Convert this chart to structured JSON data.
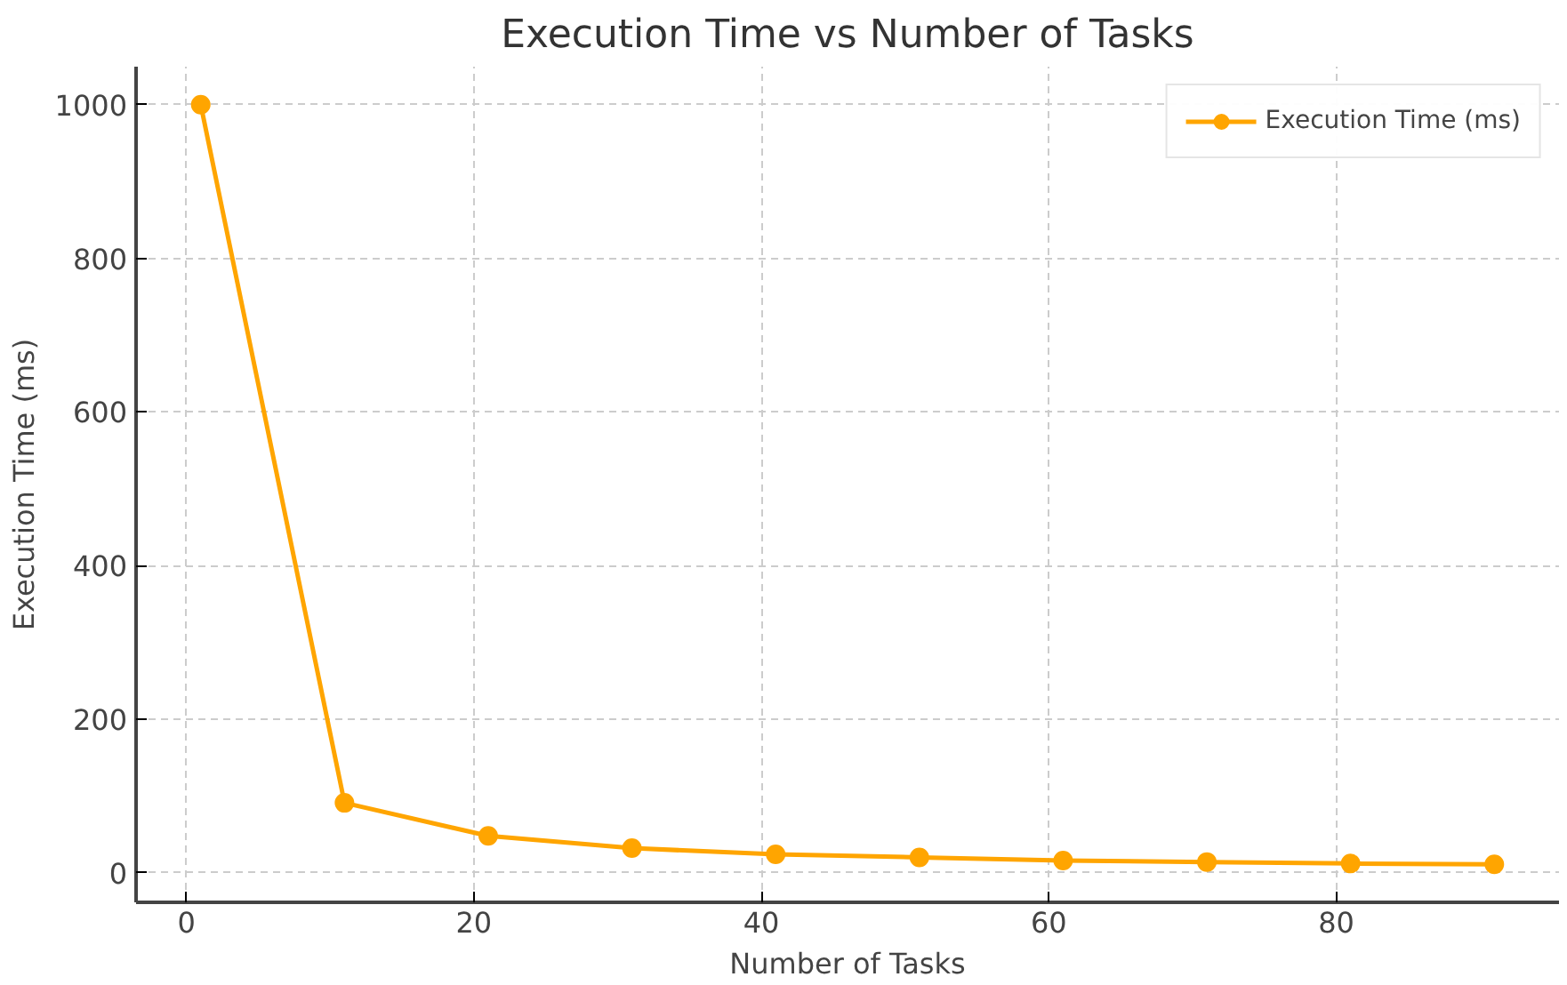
{
  "chart_data": {
    "type": "line",
    "title": "Execution Time vs Number of Tasks",
    "xlabel": "Number of Tasks",
    "ylabel": "Execution Time (ms)",
    "x": [
      1,
      11,
      21,
      31,
      41,
      51,
      61,
      71,
      81,
      91
    ],
    "series": [
      {
        "name": "Execution Time (ms)",
        "color": "#ffa500",
        "values": [
          1000,
          91,
          48,
          32,
          24,
          20,
          16,
          14,
          12,
          11
        ]
      }
    ],
    "xlim": [
      -3.5,
      95.5
    ],
    "ylim": [
      -38.5,
      1049.5
    ],
    "xticks": [
      0,
      20,
      40,
      60,
      80
    ],
    "yticks": [
      0,
      200,
      400,
      600,
      800,
      1000
    ],
    "grid": true,
    "legend": "top right",
    "marker": "circle",
    "line_style": "solid"
  }
}
